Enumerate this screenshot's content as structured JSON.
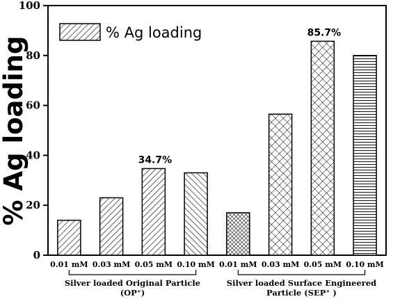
{
  "chart_data": {
    "type": "bar",
    "ylabel": "% Ag loading",
    "ylim": [
      0,
      100
    ],
    "yticks": [
      0,
      20,
      40,
      60,
      80,
      100
    ],
    "grid": false,
    "legend": {
      "label": "% Ag loading",
      "placement": "top-left"
    },
    "categories": [
      "0.01 mM",
      "0.03 mM",
      "0.05 mM",
      "0.10 mM",
      "0.01 mM",
      "0.03 mM",
      "0.05 mM",
      "0.10 mM"
    ],
    "values": [
      14,
      23,
      34.7,
      33,
      17,
      56.5,
      85.7,
      80
    ],
    "patterns": [
      "diag-right",
      "diag-right",
      "diag-right",
      "diag-left",
      "cross-dense",
      "cross",
      "cross",
      "horizontal"
    ],
    "groups": [
      {
        "lines": [
          "Silver loaded Original Particle",
          "(OP⁺)"
        ],
        "indices": [
          0,
          1,
          2,
          3
        ]
      },
      {
        "lines": [
          "Silver loaded Surface Engineered",
          "Particle  (SEP⁺ )"
        ],
        "indices": [
          4,
          5,
          6,
          7
        ]
      }
    ],
    "annotations": [
      {
        "index": 2,
        "text": "34.7%"
      },
      {
        "index": 6,
        "text": "85.7%"
      }
    ]
  }
}
